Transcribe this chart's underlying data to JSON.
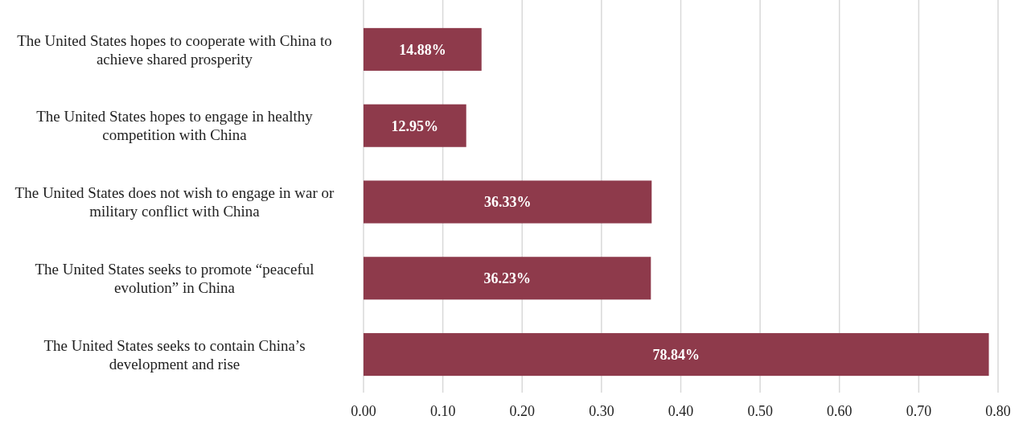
{
  "chart_data": {
    "type": "bar",
    "orientation": "horizontal",
    "categories": [
      "The United States hopes to cooperate with China to achieve shared prosperity",
      "The United States hopes to engage in healthy competition with China",
      "The United States does not wish to engage in war or military conflict with China",
      "The United States seeks to promote “peaceful evolution” in China",
      "The United States seeks to contain China’s development and rise"
    ],
    "values": [
      0.1488,
      0.1295,
      0.3633,
      0.3623,
      0.7884
    ],
    "value_labels": [
      "14.88%",
      "12.95%",
      "36.33%",
      "36.23%",
      "78.84%"
    ],
    "color": "#8e3a4b",
    "xlim": [
      0,
      0.8
    ],
    "xticks": [
      {
        "value": 0,
        "label": "0.00"
      },
      {
        "value": 0.1,
        "label": "0.10"
      },
      {
        "value": 0.2,
        "label": "0.20"
      },
      {
        "value": 0.3,
        "label": "0.30"
      },
      {
        "value": 0.4,
        "label": "0.40"
      },
      {
        "value": 0.5,
        "label": "0.50"
      },
      {
        "value": 0.6,
        "label": "0.60"
      },
      {
        "value": 0.7,
        "label": "0.70"
      },
      {
        "value": 0.8,
        "label": "0.80"
      }
    ],
    "grid": "x"
  }
}
